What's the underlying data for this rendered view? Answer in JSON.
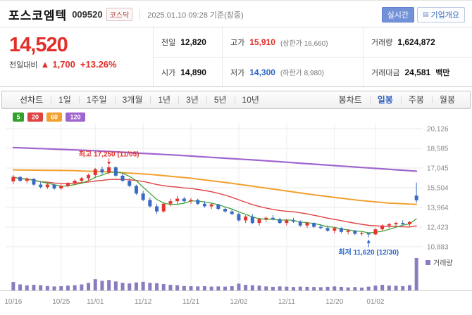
{
  "header": {
    "title": "포스코엠텍",
    "code": "009520",
    "market": "코스닥",
    "datetime": "2025.01.10 09:28 기준(장중)",
    "realtime": "실시간",
    "company_overview": "기업개요"
  },
  "price": {
    "current": "14,520",
    "change_label": "전일대비",
    "change_arrow": "▲",
    "change_value": "1,700",
    "change_rate": "+13.26%"
  },
  "summary": {
    "cells": [
      {
        "key": "prev",
        "label": "전일",
        "value": "12,820"
      },
      {
        "key": "high",
        "label": "고가",
        "value": "15,910",
        "extra": "(상한가 16,660)",
        "color": "red"
      },
      {
        "key": "volume",
        "label": "거래량",
        "value": "1,624,872"
      },
      {
        "key": "open",
        "label": "시가",
        "value": "14,890"
      },
      {
        "key": "low",
        "label": "저가",
        "value": "14,300",
        "extra": "(하한가 8,980)",
        "color": "blue"
      },
      {
        "key": "amount",
        "label": "거래대금",
        "value": "24,581",
        "unit": "백만"
      }
    ]
  },
  "tabs": {
    "period": [
      {
        "key": "line-chart",
        "label": "선차트",
        "title": true
      },
      {
        "key": "1day",
        "label": "1일"
      },
      {
        "key": "1week",
        "label": "1주일"
      },
      {
        "key": "3month",
        "label": "3개월"
      },
      {
        "key": "1year",
        "label": "1년"
      },
      {
        "key": "3year",
        "label": "3년"
      },
      {
        "key": "5year",
        "label": "5년"
      },
      {
        "key": "10year",
        "label": "10년"
      }
    ],
    "candle": [
      {
        "key": "candle-chart",
        "label": "봉차트",
        "title": true
      },
      {
        "key": "daily",
        "label": "일봉",
        "selected": true
      },
      {
        "key": "weekly",
        "label": "주봉"
      },
      {
        "key": "monthly",
        "label": "월봉"
      }
    ]
  },
  "chart_data": {
    "type": "candlestick",
    "legend": [
      {
        "label": "5",
        "color": "#33a02c"
      },
      {
        "label": "20",
        "color": "#e04343"
      },
      {
        "label": "60",
        "color": "#f2a02f"
      },
      {
        "label": "120",
        "color": "#9f65cf"
      }
    ],
    "y_axis_labels": [
      "20,126",
      "18,585",
      "17,045",
      "15,504",
      "13,964",
      "12,423",
      "10,883"
    ],
    "y_axis_values": [
      20126,
      18585,
      17045,
      15504,
      13964,
      12423,
      10883
    ],
    "x_ticks": [
      {
        "label": "10/16",
        "index": 0
      },
      {
        "label": "10/25",
        "index": 7
      },
      {
        "label": "11/01",
        "index": 12
      },
      {
        "label": "11/12",
        "index": 19
      },
      {
        "label": "11/21",
        "index": 26
      },
      {
        "label": "12/02",
        "index": 33
      },
      {
        "label": "12/11",
        "index": 40
      },
      {
        "label": "12/20",
        "index": 47
      },
      {
        "label": "01/02",
        "index": 53
      }
    ],
    "annotations": {
      "high": {
        "text": "최고 17,250 (11/05)",
        "value": 17250
      },
      "low": {
        "text": "최저 11,620 (12/30)",
        "value": 11620
      }
    },
    "volume_label": "거래량",
    "colors": {
      "up": "#e3342f",
      "down": "#3a6bc4",
      "volume": "#8b7cc0"
    },
    "candles": [
      [
        16000,
        16500,
        15800,
        16350,
        420000
      ],
      [
        16350,
        16400,
        15950,
        16050,
        300000
      ],
      [
        16050,
        16300,
        15850,
        16200,
        250000
      ],
      [
        16200,
        16250,
        15650,
        15750,
        280000
      ],
      [
        15750,
        15950,
        15450,
        15550,
        260000
      ],
      [
        15550,
        15850,
        15400,
        15750,
        220000
      ],
      [
        15750,
        15800,
        15350,
        15450,
        200000
      ],
      [
        15450,
        15750,
        15350,
        15650,
        210000
      ],
      [
        15650,
        15950,
        15550,
        15850,
        240000
      ],
      [
        15850,
        16150,
        15700,
        16050,
        260000
      ],
      [
        16050,
        16350,
        15900,
        16250,
        300000
      ],
      [
        16250,
        16600,
        16050,
        16500,
        380000
      ],
      [
        16500,
        17050,
        16300,
        16950,
        560000
      ],
      [
        16950,
        17150,
        16550,
        16700,
        480000
      ],
      [
        16700,
        17250,
        16550,
        17100,
        520000
      ],
      [
        17100,
        17200,
        16350,
        16450,
        450000
      ],
      [
        16450,
        16650,
        15950,
        16050,
        380000
      ],
      [
        16050,
        16250,
        15550,
        15650,
        350000
      ],
      [
        15650,
        15750,
        14950,
        15050,
        400000
      ],
      [
        15050,
        15250,
        14450,
        14550,
        430000
      ],
      [
        14550,
        14750,
        13950,
        14050,
        380000
      ],
      [
        14050,
        14250,
        13450,
        13650,
        360000
      ],
      [
        13650,
        14350,
        13550,
        14250,
        320000
      ],
      [
        14250,
        14650,
        14050,
        14450,
        280000
      ],
      [
        14450,
        14850,
        14250,
        14650,
        260000
      ],
      [
        14650,
        14800,
        14350,
        14450,
        220000
      ],
      [
        14450,
        14700,
        14250,
        14550,
        210000
      ],
      [
        14550,
        14650,
        14150,
        14250,
        200000
      ],
      [
        14250,
        14450,
        13950,
        14050,
        210000
      ],
      [
        14050,
        14350,
        13850,
        14200,
        190000
      ],
      [
        14200,
        14250,
        13750,
        13850,
        200000
      ],
      [
        13850,
        14000,
        13550,
        13650,
        190000
      ],
      [
        13650,
        13850,
        13350,
        13450,
        210000
      ],
      [
        13450,
        13550,
        12850,
        12950,
        340000
      ],
      [
        12950,
        13350,
        12750,
        13250,
        280000
      ],
      [
        13250,
        13450,
        12650,
        12750,
        260000
      ],
      [
        12750,
        13150,
        12550,
        13050,
        240000
      ],
      [
        13050,
        13250,
        12850,
        13150,
        200000
      ],
      [
        13150,
        13350,
        12950,
        13050,
        180000
      ],
      [
        13050,
        13150,
        12650,
        12750,
        200000
      ],
      [
        12750,
        13050,
        12550,
        12950,
        190000
      ],
      [
        12950,
        13150,
        12750,
        12850,
        170000
      ],
      [
        12850,
        12950,
        12450,
        12550,
        190000
      ],
      [
        12550,
        12850,
        12350,
        12750,
        180000
      ],
      [
        12750,
        12800,
        12350,
        12450,
        170000
      ],
      [
        12450,
        12650,
        12250,
        12350,
        160000
      ],
      [
        12350,
        12550,
        12050,
        12150,
        180000
      ],
      [
        12150,
        12450,
        11950,
        12350,
        200000
      ],
      [
        12350,
        12400,
        11950,
        12050,
        180000
      ],
      [
        12050,
        12250,
        11850,
        12150,
        150000
      ],
      [
        12150,
        12200,
        11800,
        11900,
        170000
      ],
      [
        11900,
        12050,
        11750,
        11950,
        140000
      ],
      [
        11950,
        12000,
        11620,
        11850,
        190000
      ],
      [
        11850,
        12350,
        11800,
        12250,
        240000
      ],
      [
        12250,
        12650,
        12150,
        12550,
        280000
      ],
      [
        12550,
        12750,
        12350,
        12650,
        240000
      ],
      [
        12650,
        12850,
        12450,
        12750,
        230000
      ],
      [
        12750,
        12950,
        12550,
        12650,
        210000
      ],
      [
        12650,
        12900,
        12500,
        12820,
        260000
      ],
      [
        14890,
        15910,
        14300,
        14520,
        1624872
      ]
    ],
    "ma60_points": [
      [
        0,
        16900
      ],
      [
        8,
        16850
      ],
      [
        14,
        16750
      ],
      [
        20,
        16550
      ],
      [
        26,
        16250
      ],
      [
        32,
        15850
      ],
      [
        38,
        15400
      ],
      [
        44,
        14950
      ],
      [
        50,
        14550
      ],
      [
        55,
        14300
      ],
      [
        59,
        14200
      ]
    ],
    "ma120_points": [
      [
        0,
        18650
      ],
      [
        12,
        18400
      ],
      [
        24,
        18050
      ],
      [
        36,
        17650
      ],
      [
        48,
        17200
      ],
      [
        59,
        16800
      ]
    ]
  }
}
